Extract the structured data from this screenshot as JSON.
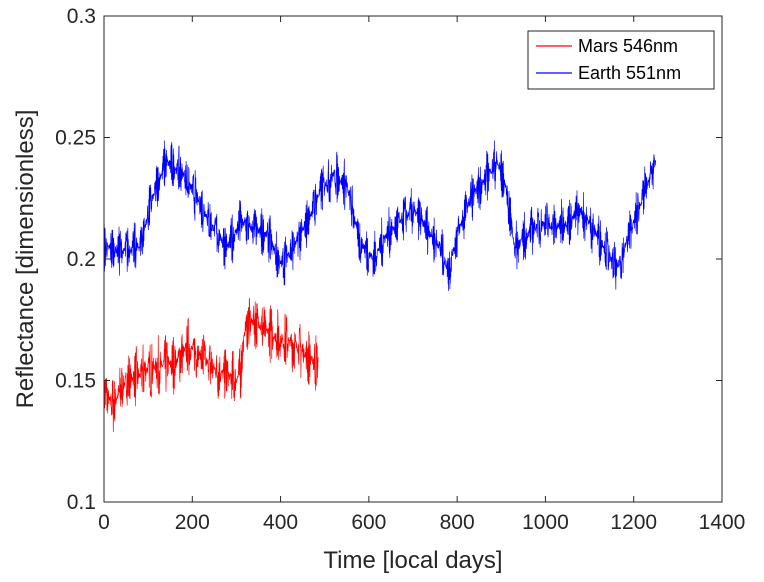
{
  "chart_data": {
    "type": "line",
    "title": "",
    "xlabel": "Time [local days]",
    "ylabel": "Reflectance [dimensionless]",
    "xlim": [
      0,
      1400
    ],
    "ylim": [
      0.1,
      0.3
    ],
    "xticks": [
      0,
      200,
      400,
      600,
      800,
      1000,
      1200,
      1400
    ],
    "xtick_labels": [
      "0",
      "200",
      "400",
      "600",
      "800",
      "1000",
      "1200",
      "1400"
    ],
    "yticks": [
      0.1,
      0.15,
      0.2,
      0.25,
      0.3
    ],
    "ytick_labels": [
      "0.1",
      "0.15",
      "0.2",
      "0.25",
      "0.3"
    ],
    "grid": false,
    "legend_position": "top-right",
    "series": [
      {
        "name": "Mars 546nm",
        "color": "#ff0000",
        "noise_amplitude": 0.013,
        "x": [
          0,
          20,
          50,
          80,
          100,
          130,
          160,
          190,
          210,
          240,
          270,
          300,
          310,
          320,
          340,
          370,
          400,
          430,
          460,
          485
        ],
        "y": [
          0.145,
          0.14,
          0.15,
          0.152,
          0.155,
          0.156,
          0.157,
          0.164,
          0.162,
          0.156,
          0.153,
          0.15,
          0.155,
          0.172,
          0.175,
          0.17,
          0.167,
          0.165,
          0.16,
          0.157
        ]
      },
      {
        "name": "Earth 551nm",
        "color": "#0000ff",
        "noise_amplitude": 0.011,
        "x": [
          0,
          40,
          80,
          110,
          140,
          180,
          220,
          250,
          280,
          310,
          340,
          370,
          400,
          430,
          460,
          490,
          520,
          550,
          580,
          610,
          640,
          670,
          700,
          730,
          760,
          780,
          800,
          830,
          860,
          890,
          910,
          930,
          960,
          990,
          1020,
          1050,
          1080,
          1110,
          1140,
          1160,
          1190,
          1220,
          1250
        ],
        "y": [
          0.205,
          0.203,
          0.205,
          0.225,
          0.24,
          0.235,
          0.222,
          0.212,
          0.205,
          0.215,
          0.212,
          0.21,
          0.198,
          0.205,
          0.215,
          0.228,
          0.235,
          0.23,
          0.207,
          0.2,
          0.21,
          0.215,
          0.22,
          0.213,
          0.205,
          0.195,
          0.21,
          0.225,
          0.232,
          0.24,
          0.23,
          0.205,
          0.21,
          0.215,
          0.213,
          0.215,
          0.22,
          0.212,
          0.203,
          0.195,
          0.21,
          0.225,
          0.24
        ]
      }
    ]
  }
}
